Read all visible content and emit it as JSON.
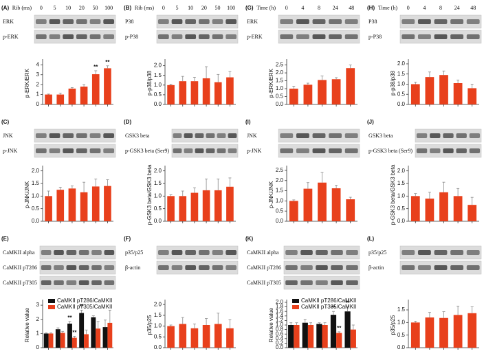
{
  "chart_data": [
    {
      "type": "bar",
      "panel": "(A)",
      "header_label": "Rib (ms)",
      "categories": [
        "0",
        "5",
        "10",
        "20",
        "50",
        "100"
      ],
      "blots": [
        "ERK",
        "p-ERK"
      ],
      "ylabel": "p-ERK/ERK",
      "values": [
        1,
        1,
        1.6,
        1.8,
        3.05,
        3.65
      ],
      "errors": [
        0.05,
        0.15,
        0.1,
        0.2,
        0.35,
        0.25
      ],
      "significance": [
        null,
        null,
        null,
        null,
        "**",
        "**"
      ],
      "color": "#e8401c",
      "ylim": [
        0,
        4.3
      ],
      "yticks": [
        0,
        1,
        2,
        3,
        4
      ]
    },
    {
      "type": "bar",
      "panel": "(B)",
      "header_label": "Rib (ms)",
      "categories": [
        "0",
        "5",
        "10",
        "20",
        "50",
        "100"
      ],
      "blots": [
        "P38",
        "p-P38"
      ],
      "ylabel": "p-p38/p38",
      "values": [
        1,
        1.2,
        1.2,
        1.35,
        1.15,
        1.4
      ],
      "errors": [
        0.05,
        0.25,
        0.2,
        0.6,
        0.4,
        0.3
      ],
      "color": "#e8401c",
      "ylim": [
        0,
        2.2
      ],
      "yticks": [
        {
          "value": 0,
          "label": "0.0"
        },
        0.5,
        {
          "value": 1,
          "label": "1.0"
        },
        1.5,
        {
          "value": 2,
          "label": "2.0"
        }
      ]
    },
    {
      "type": "bar",
      "panel": "(G)",
      "header_label": "Time (h)",
      "categories": [
        "0",
        "4",
        "8",
        "24",
        "48"
      ],
      "blots": [
        "ERK",
        "p-ERK"
      ],
      "ylabel": "p-ERK/ERK",
      "values": [
        1,
        1.25,
        1.55,
        1.6,
        2.3
      ],
      "errors": [
        0.15,
        0.1,
        0.25,
        0.1,
        0.2
      ],
      "color": "#e8401c",
      "ylim": [
        0,
        2.7
      ],
      "yticks": [
        {
          "value": 0,
          "label": "0.0"
        },
        0.5,
        {
          "value": 1,
          "label": "1.0"
        },
        1.5,
        {
          "value": 2,
          "label": "2.0"
        },
        2.5
      ]
    },
    {
      "type": "bar",
      "panel": "(H)",
      "header_label": "Time (h)",
      "categories": [
        "0",
        "4",
        "8",
        "24",
        "48"
      ],
      "blots": [
        "P38",
        "p-P38"
      ],
      "ylabel": "p-p38/p38",
      "values": [
        1,
        1.35,
        1.45,
        1.05,
        0.8
      ],
      "errors": [
        0.1,
        0.25,
        0.2,
        0.15,
        0.2
      ],
      "color": "#e8401c",
      "ylim": [
        0,
        2.1
      ],
      "yticks": [
        {
          "value": 0,
          "label": "0.0"
        },
        0.5,
        {
          "value": 1,
          "label": "1.0"
        },
        1.5,
        {
          "value": 2,
          "label": "2.0"
        }
      ]
    },
    {
      "type": "bar",
      "panel": "(C)",
      "blots": [
        "JNK",
        "p-JNK"
      ],
      "ylabel": "p-JNK/JNK",
      "values": [
        1,
        1.25,
        1.3,
        1.15,
        1.38,
        1.4
      ],
      "errors": [
        0.2,
        0.1,
        0.1,
        0.4,
        0.3,
        0.25
      ],
      "color": "#e8401c",
      "ylim": [
        0,
        2.1
      ],
      "yticks": [
        {
          "value": 0,
          "label": "0.0"
        },
        0.5,
        {
          "value": 1,
          "label": "1.0"
        },
        1.5,
        {
          "value": 2,
          "label": "2.0"
        }
      ]
    },
    {
      "type": "bar",
      "panel": "(D)",
      "blots": [
        "GSK3 beta",
        "p-GSK3 beta (Ser9)"
      ],
      "ylabel": "p-GSK3 beta/GSK3 beta",
      "values": [
        1,
        1,
        1.13,
        1.23,
        1.23,
        1.37
      ],
      "errors": [
        0.05,
        0.2,
        0.2,
        0.45,
        0.45,
        0.35
      ],
      "color": "#e8401c",
      "ylim": [
        0,
        2.1
      ],
      "yticks": [
        {
          "value": 0,
          "label": "0.0"
        },
        0.5,
        {
          "value": 1,
          "label": "1.0"
        },
        1.5,
        {
          "value": 2,
          "label": "2.0"
        }
      ]
    },
    {
      "type": "bar",
      "panel": "(I)",
      "blots": [
        "JNK",
        "p-JNK"
      ],
      "ylabel": "p-JNK/JNK",
      "values": [
        1,
        1.6,
        1.9,
        1.62,
        1.08
      ],
      "errors": [
        0.05,
        0.3,
        0.5,
        0.15,
        0.1
      ],
      "color": "#e8401c",
      "ylim": [
        0,
        2.6
      ],
      "yticks": [
        {
          "value": 0,
          "label": "0.0"
        },
        0.5,
        {
          "value": 1,
          "label": "1.0"
        },
        1.5,
        {
          "value": 2,
          "label": "2.0"
        },
        2.5
      ]
    },
    {
      "type": "bar",
      "panel": "(J)",
      "blots": [
        "GSK3 beta",
        "p-GSK3 beta (Ser9)"
      ],
      "ylabel": "p-GSK3 beta/GSK3 beta",
      "values": [
        1,
        0.9,
        1.15,
        1.0,
        0.65
      ],
      "errors": [
        0.1,
        0.25,
        0.4,
        0.3,
        0.3
      ],
      "color": "#e8401c",
      "ylim": [
        0,
        2.1
      ],
      "yticks": [
        {
          "value": 0,
          "label": "0.0"
        },
        0.5,
        {
          "value": 1,
          "label": "1.0"
        },
        1.5,
        {
          "value": 2,
          "label": "2.0"
        }
      ]
    },
    {
      "type": "bar",
      "panel": "(E)",
      "blots": [
        "CaMKII alpha",
        "CaMKII pT286",
        "CaMKII pT305"
      ],
      "ylabel": "Relative value",
      "series": [
        {
          "name": "CaMKII pT286/CaMKII",
          "color": "#111111",
          "values": [
            1,
            1.3,
            1.7,
            2.45,
            2.15,
            1.45
          ],
          "errors": [
            0.05,
            0.1,
            0.15,
            0.2,
            0.1,
            0.5
          ],
          "significance": [
            null,
            null,
            "**",
            "**",
            null,
            null
          ]
        },
        {
          "name": "CaMKII pT305/CaMKII",
          "color": "#e8401c",
          "values": [
            1,
            1.05,
            0.7,
            0.95,
            1.35,
            1.75
          ],
          "errors": [
            0.05,
            0.1,
            0.1,
            0.3,
            0.5,
            0.9
          ],
          "significance": [
            null,
            null,
            "**",
            null,
            null,
            null
          ]
        }
      ],
      "ylim": [
        0,
        3.2
      ],
      "yticks": [
        0,
        1,
        2,
        3
      ]
    },
    {
      "type": "bar",
      "panel": "(F)",
      "blots": [
        "p35/p25",
        "β-actin"
      ],
      "ylabel": "p35/p25",
      "values": [
        1,
        1.1,
        0.9,
        1.05,
        1.1,
        0.9
      ],
      "errors": [
        0.05,
        0.3,
        0.2,
        0.3,
        0.5,
        0.4
      ],
      "color": "#e8401c",
      "ylim": [
        0,
        2.1
      ],
      "yticks": [
        {
          "value": 0,
          "label": "0.0"
        },
        0.5,
        {
          "value": 1,
          "label": "1.0"
        },
        1.5,
        {
          "value": 2,
          "label": "2.0"
        }
      ]
    },
    {
      "type": "bar",
      "panel": "(K)",
      "blots": [
        "CaMKII alpha",
        "CaMKII pT286",
        "CaMKII pT305"
      ],
      "ylabel": "Relative value",
      "series": [
        {
          "name": "CaMKII pT286/CaMKII",
          "color": "#111111",
          "values": [
            1,
            1.1,
            1.05,
            1.45,
            1.6
          ],
          "errors": [
            0.1,
            0.15,
            0.05,
            0.15,
            0.2
          ],
          "significance": [
            null,
            null,
            null,
            "**",
            "**"
          ]
        },
        {
          "name": "CaMKII pT305/CaMKII",
          "color": "#e8401c",
          "values": [
            1,
            1,
            1,
            0.65,
            0.8
          ],
          "errors": [
            0.1,
            0.1,
            0.1,
            0.05,
            0.2
          ],
          "significance": [
            null,
            null,
            null,
            "**",
            null
          ]
        }
      ],
      "ylim": [
        0,
        2.0
      ],
      "yticks": [
        {
          "value": 0,
          "label": "0.0"
        },
        0.2,
        0.4,
        0.6,
        0.8,
        {
          "value": 1,
          "label": "1.0"
        },
        1.2,
        1.4,
        1.6,
        1.8,
        {
          "value": 2,
          "label": "2.0"
        }
      ]
    },
    {
      "type": "bar",
      "panel": "(L)",
      "blots": [
        "p35/p25",
        "β-actin"
      ],
      "ylabel": "p35/p25",
      "values": [
        1,
        1.2,
        1.18,
        1.3,
        1.37
      ],
      "errors": [
        0.05,
        0.2,
        0.25,
        0.35,
        0.25
      ],
      "color": "#e8401c",
      "ylim": [
        0,
        1.8
      ],
      "yticks": [
        {
          "value": 0,
          "label": "0.0"
        },
        0.5,
        {
          "value": 1,
          "label": "1.0"
        },
        1.5
      ]
    }
  ]
}
